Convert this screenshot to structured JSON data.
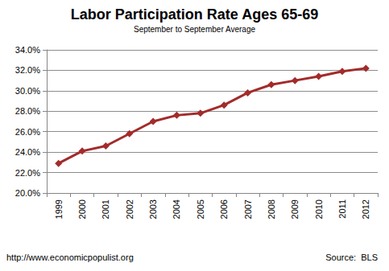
{
  "chart_data": {
    "type": "line",
    "title": "Labor Participation Rate Ages 65-69",
    "subtitle": "September to September Average",
    "categories": [
      "1999",
      "2000",
      "2001",
      "2002",
      "2003",
      "2004",
      "2005",
      "2006",
      "2007",
      "2008",
      "2009",
      "2010",
      "2011",
      "2012"
    ],
    "values": [
      22.9,
      24.1,
      24.6,
      25.8,
      27.0,
      27.6,
      27.8,
      28.6,
      29.8,
      30.6,
      31.0,
      31.4,
      31.9,
      32.2
    ],
    "color": "#a32b2b",
    "marker": "diamond",
    "ylim": [
      20,
      34
    ],
    "yticks": [
      {
        "value": 20,
        "label": "20.0%"
      },
      {
        "value": 22,
        "label": "22.0%"
      },
      {
        "value": 24,
        "label": "24.0%"
      },
      {
        "value": 26,
        "label": "26.0%"
      },
      {
        "value": 28,
        "label": "28.0%"
      },
      {
        "value": 30,
        "label": "30.0%"
      },
      {
        "value": 32,
        "label": "32.0%"
      },
      {
        "value": 34,
        "label": "34.0%"
      }
    ],
    "grid": true,
    "annotations": [
      "http://www.economicpopulist.org",
      "Source:  BLS"
    ]
  }
}
